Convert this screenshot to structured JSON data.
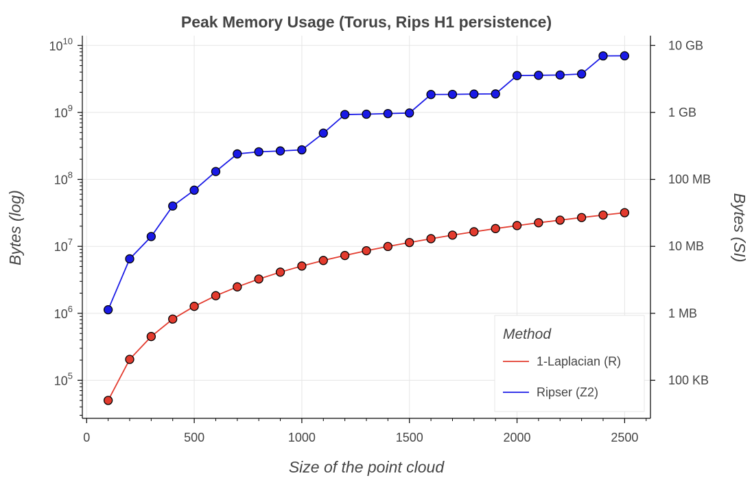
{
  "chart_data": {
    "type": "line",
    "title": "Peak Memory Usage (Torus, Rips H1 persistence)",
    "xlabel": "Size of the point cloud",
    "ylabel": "Bytes (log)",
    "ylabel_right": "Bytes (SI)",
    "xlim": [
      -20,
      2620
    ],
    "ylim": [
      27000,
      14000000000
    ],
    "yscale": "log",
    "grid": true,
    "x_ticks": [
      0,
      500,
      1000,
      1500,
      2000,
      2500
    ],
    "y_ticks": [
      {
        "value": 100000,
        "base": "10",
        "exp": "5"
      },
      {
        "value": 1000000,
        "base": "10",
        "exp": "6"
      },
      {
        "value": 10000000,
        "base": "10",
        "exp": "7"
      },
      {
        "value": 100000000,
        "base": "10",
        "exp": "8"
      },
      {
        "value": 1000000000,
        "base": "10",
        "exp": "9"
      },
      {
        "value": 10000000000,
        "base": "10",
        "exp": "10"
      }
    ],
    "y_right_ticks": [
      {
        "value": 100000,
        "label": "100 KB"
      },
      {
        "value": 1000000,
        "label": "1 MB"
      },
      {
        "value": 10000000,
        "label": "10 MB"
      },
      {
        "value": 100000000,
        "label": "100 MB"
      },
      {
        "value": 1000000000,
        "label": "1 GB"
      },
      {
        "value": 10000000000,
        "label": "10 GB"
      }
    ],
    "x": [
      100,
      200,
      300,
      400,
      500,
      600,
      700,
      800,
      900,
      1000,
      1100,
      1200,
      1300,
      1400,
      1500,
      1600,
      1700,
      1800,
      1900,
      2000,
      2100,
      2200,
      2300,
      2400,
      2500
    ],
    "legend": {
      "title": "Method",
      "placement": "bottom-right"
    },
    "series": [
      {
        "name": "1-Laplacian (R)",
        "color": "#e33b2e",
        "values": [
          50000,
          205000,
          450000,
          820000,
          1270000,
          1830000,
          2480000,
          3250000,
          4120000,
          5080000,
          6150000,
          7300000,
          8600000,
          9950000,
          11400000,
          13000000,
          14700000,
          16500000,
          18400000,
          20400000,
          22500000,
          24600000,
          26900000,
          29300000,
          31800000
        ]
      },
      {
        "name": "Ripser (Z2)",
        "color": "#1a1ae6",
        "values": [
          1130000,
          6500000,
          14000000,
          40000000,
          69000000,
          131000000,
          240000000,
          258000000,
          266000000,
          276000000,
          490000000,
          930000000,
          940000000,
          960000000,
          980000000,
          1850000000,
          1860000000,
          1880000000,
          1890000000,
          3550000000,
          3580000000,
          3620000000,
          3750000000,
          6980000000,
          7000000000
        ]
      }
    ]
  }
}
